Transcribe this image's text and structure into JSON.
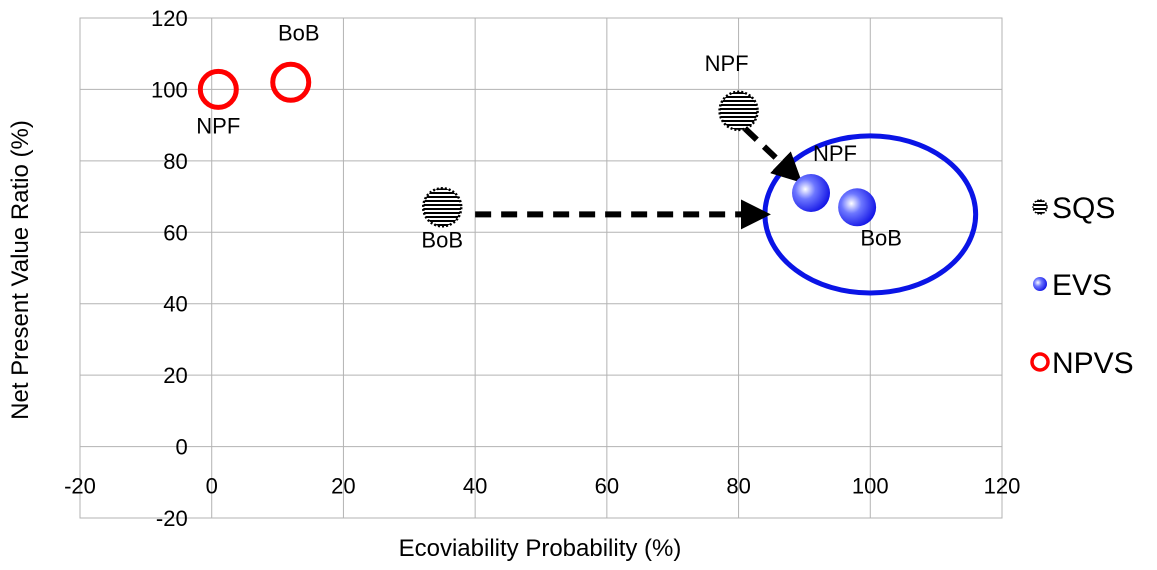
{
  "chart_data": {
    "type": "scatter",
    "xlabel": "Ecoviability Probability (%)",
    "ylabel": "Net Present Value Ratio (%)",
    "xlim": [
      -20,
      120
    ],
    "ylim": [
      -20,
      120
    ],
    "x_ticks": [
      -20,
      0,
      20,
      40,
      60,
      80,
      100,
      120
    ],
    "y_ticks": [
      -20,
      0,
      20,
      40,
      60,
      80,
      100,
      120
    ],
    "grid": true,
    "legend_position": "right",
    "series": [
      {
        "name": "SQS",
        "style": "hatched",
        "color": "#000000",
        "points": [
          {
            "x": 35,
            "y": 67,
            "label": "BoB"
          },
          {
            "x": 80,
            "y": 94,
            "label": "NPF"
          }
        ]
      },
      {
        "name": "EVS",
        "style": "gradient",
        "color": "#1f2ee6",
        "points": [
          {
            "x": 91,
            "y": 71,
            "label": "NPF"
          },
          {
            "x": 98,
            "y": 67,
            "label": "BoB"
          }
        ]
      },
      {
        "name": "NPVS",
        "style": "ring",
        "color": "#ff0000",
        "points": [
          {
            "x": 1,
            "y": 100,
            "label": "NPF"
          },
          {
            "x": 12,
            "y": 102,
            "label": "BoB"
          }
        ]
      }
    ],
    "annotations": {
      "arrows": [
        {
          "from": [
            40,
            65
          ],
          "to": [
            84,
            65
          ]
        },
        {
          "from": [
            81,
            89
          ],
          "to": [
            89,
            75
          ]
        }
      ],
      "ellipse": {
        "cx": 100,
        "cy": 65,
        "rx": 16,
        "ry": 22,
        "color": "#0a14e6"
      }
    }
  }
}
